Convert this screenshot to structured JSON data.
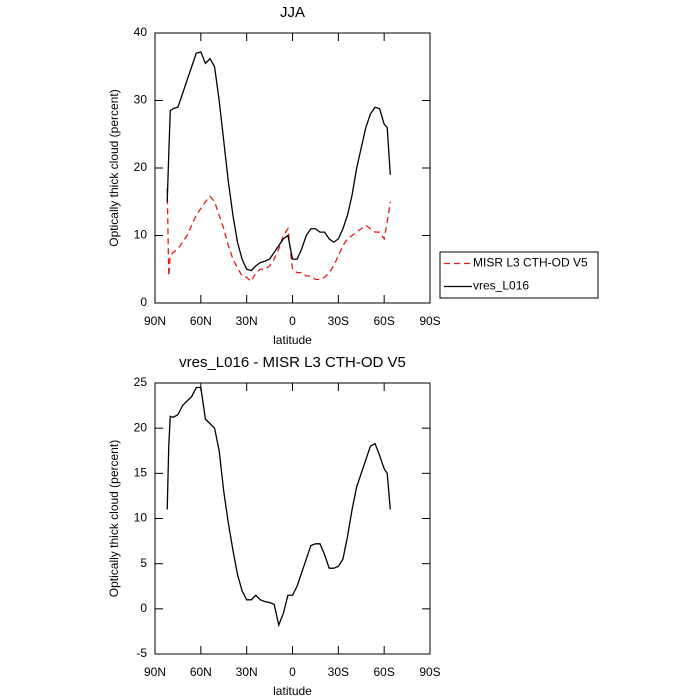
{
  "chart_data": [
    {
      "type": "line",
      "title": "JJA",
      "xlabel": "latitude",
      "ylabel": "Optically thick cloud (percent)",
      "x": [
        82,
        81,
        80,
        78,
        75,
        72,
        69,
        66,
        63,
        60,
        57,
        54,
        51,
        48,
        45,
        42,
        39,
        36,
        33,
        30,
        27,
        24,
        21,
        18,
        15,
        12,
        9,
        6,
        3,
        0,
        -3,
        -6,
        -9,
        -12,
        -15,
        -18,
        -21,
        -24,
        -27,
        -30,
        -33,
        -36,
        -39,
        -42,
        -45,
        -48,
        -51,
        -54,
        -57,
        -60,
        -62,
        -64
      ],
      "xlim": [
        90,
        -90
      ],
      "xticks": [
        {
          "value": 90,
          "label": "90N"
        },
        {
          "value": 60,
          "label": "60N"
        },
        {
          "value": 30,
          "label": "30N"
        },
        0,
        {
          "value": -30,
          "label": "30S"
        },
        {
          "value": -60,
          "label": "60S"
        },
        {
          "value": -90,
          "label": "90S"
        }
      ],
      "ylim": [
        0,
        40
      ],
      "yticks": [
        0,
        10,
        20,
        30,
        40
      ],
      "legend": "right",
      "series": [
        {
          "name": "MISR L3 CTH-OD V5",
          "color": "#e8191c",
          "line_style": "dashed",
          "values": [
            17,
            4,
            7,
            7.5,
            8,
            9,
            10,
            11.5,
            13,
            14,
            15,
            15.8,
            15,
            13,
            11,
            8.5,
            6.5,
            5.2,
            4,
            3.8,
            3.2,
            4.5,
            5,
            5,
            5.5,
            6.5,
            8,
            10,
            11,
            5,
            4.5,
            4.5,
            4,
            4,
            3.5,
            3.5,
            3.8,
            4.5,
            5.5,
            7,
            8.5,
            9.5,
            10,
            10.5,
            11,
            11.5,
            11,
            10.5,
            10.5,
            9.5,
            12,
            15
          ]
        },
        {
          "name": "vres_L016",
          "color": "#000000",
          "line_style": "solid",
          "values": [
            15,
            22,
            28.5,
            28.8,
            29,
            31,
            33,
            35,
            37,
            37.2,
            35.5,
            36.2,
            35,
            30,
            24,
            18,
            13,
            9,
            6.5,
            5,
            4.8,
            5.5,
            6,
            6.2,
            6.5,
            7.5,
            8.5,
            9.5,
            10,
            6.5,
            6.5,
            8,
            10,
            11,
            11,
            10.5,
            10.5,
            9.5,
            9,
            9.5,
            11,
            13,
            16,
            20,
            23,
            26,
            28,
            29,
            28.8,
            26.5,
            26,
            19
          ]
        }
      ]
    },
    {
      "type": "line",
      "title": "vres_L016 - MISR L3 CTH-OD V5",
      "xlabel": "latitude",
      "ylabel": "Optically thick cloud (percent)",
      "x": [
        82,
        81,
        80,
        78,
        75,
        72,
        69,
        66,
        63,
        60,
        57,
        54,
        51,
        48,
        45,
        42,
        39,
        36,
        33,
        30,
        27,
        24,
        21,
        18,
        15,
        12,
        9,
        6,
        3,
        0,
        -3,
        -6,
        -9,
        -12,
        -15,
        -18,
        -21,
        -24,
        -27,
        -30,
        -33,
        -36,
        -39,
        -42,
        -45,
        -48,
        -51,
        -54,
        -57,
        -60,
        -62,
        -64
      ],
      "xlim": [
        90,
        -90
      ],
      "xticks": [
        {
          "value": 90,
          "label": "90N"
        },
        {
          "value": 60,
          "label": "60N"
        },
        {
          "value": 30,
          "label": "30N"
        },
        0,
        {
          "value": -30,
          "label": "30S"
        },
        {
          "value": -60,
          "label": "60S"
        },
        {
          "value": -90,
          "label": "90S"
        }
      ],
      "ylim": [
        -5,
        25
      ],
      "yticks": [
        -5,
        0,
        5,
        10,
        15,
        20,
        25
      ],
      "color": "#000000",
      "line_style": "solid",
      "values": [
        11,
        18,
        21.3,
        21.2,
        21.5,
        22.5,
        23,
        23.5,
        24.5,
        24.5,
        21,
        20.5,
        20,
        17.5,
        13,
        9.5,
        6.5,
        3.8,
        2,
        1,
        1,
        1.5,
        1,
        0.8,
        0.7,
        0.5,
        -1.8,
        -0.5,
        1.5,
        1.5,
        2.5,
        4,
        5.5,
        7,
        7.2,
        7.2,
        6,
        4.5,
        4.5,
        4.7,
        5.5,
        8,
        11,
        13.5,
        15,
        16.5,
        18,
        18.3,
        17,
        15.5,
        15,
        11
      ]
    }
  ]
}
